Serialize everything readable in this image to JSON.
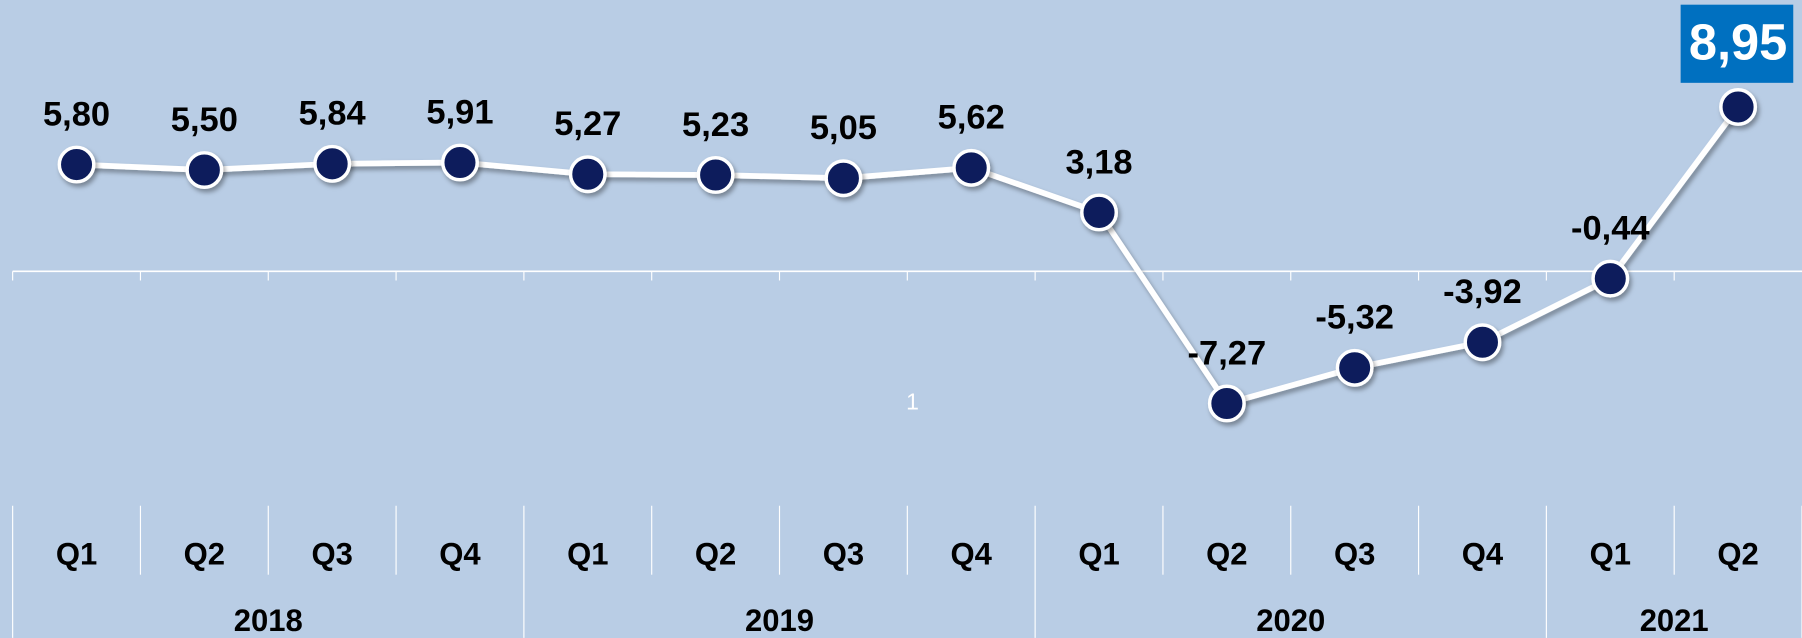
{
  "chart_data": {
    "type": "line",
    "categories": [
      [
        "2018",
        "Q1"
      ],
      [
        "2018",
        "Q2"
      ],
      [
        "2018",
        "Q3"
      ],
      [
        "2018",
        "Q4"
      ],
      [
        "2019",
        "Q1"
      ],
      [
        "2019",
        "Q2"
      ],
      [
        "2019",
        "Q3"
      ],
      [
        "2019",
        "Q4"
      ],
      [
        "2020",
        "Q1"
      ],
      [
        "2020",
        "Q2"
      ],
      [
        "2020",
        "Q3"
      ],
      [
        "2020",
        "Q4"
      ],
      [
        "2021",
        "Q1"
      ],
      [
        "2021",
        "Q2"
      ]
    ],
    "series": [
      {
        "color": "#0a1f5c",
        "values": [
          5.8,
          5.5,
          5.84,
          5.91,
          5.27,
          5.23,
          5.05,
          5.62,
          3.18,
          -7.27,
          -5.32,
          -3.92,
          -0.44,
          8.95
        ],
        "value_labels": [
          "5,80",
          "5,50",
          "5,84",
          "5,91",
          "5,27",
          "5,23",
          "5,05",
          "5,62",
          "3,18",
          "-7,27",
          "-5,32",
          "-3,92",
          "-0,44",
          "8,95"
        ]
      }
    ],
    "annotations": [
      "1"
    ]
  }
}
